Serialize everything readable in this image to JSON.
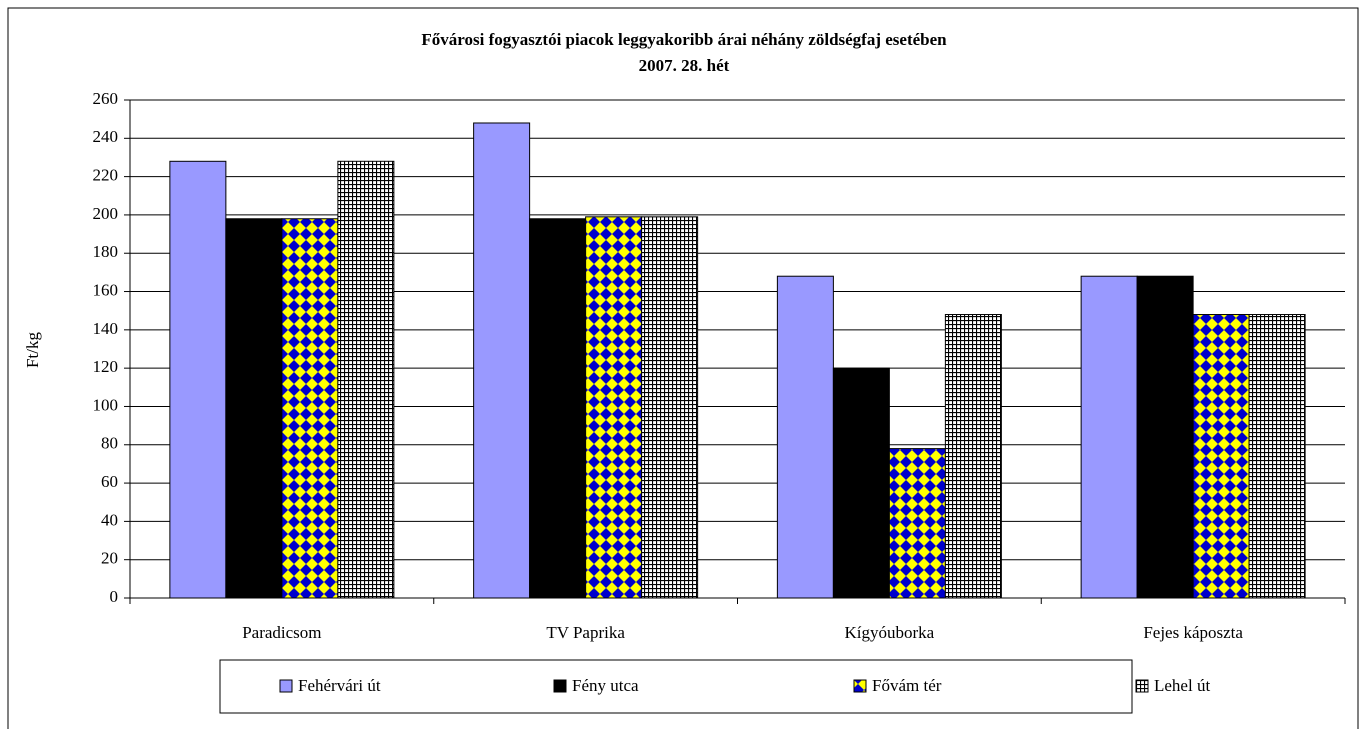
{
  "chart_data": {
    "type": "bar",
    "title": "Fővárosi fogyasztói piacok leggyakoribb árai néhány zöldségfaj esetében",
    "subtitle": "2007. 28. hét",
    "y_label": "Ft/kg",
    "categories": [
      "Paradicsom",
      "TV Paprika",
      "Kígyóuborka",
      "Fejes káposzta"
    ],
    "series": [
      {
        "name": "Fehérvári út",
        "color": "#9999ff",
        "pattern": "solid",
        "values": [
          228,
          248,
          168,
          168
        ]
      },
      {
        "name": "Fény utca",
        "color": "#000000",
        "pattern": "solid",
        "values": [
          198,
          198,
          120,
          168
        ]
      },
      {
        "name": "Fővám tér",
        "color": "#ffff00",
        "pattern": "diamond",
        "values": [
          198,
          199,
          78,
          148
        ]
      },
      {
        "name": "Lehel út",
        "color": "#ffffff",
        "pattern": "grid",
        "values": [
          228,
          199,
          148,
          148
        ]
      }
    ],
    "ylim": [
      0,
      260
    ],
    "yticks": [
      0,
      20,
      40,
      60,
      80,
      100,
      120,
      140,
      160,
      180,
      200,
      220,
      240,
      260
    ],
    "grid": true,
    "legend": "bottom"
  }
}
